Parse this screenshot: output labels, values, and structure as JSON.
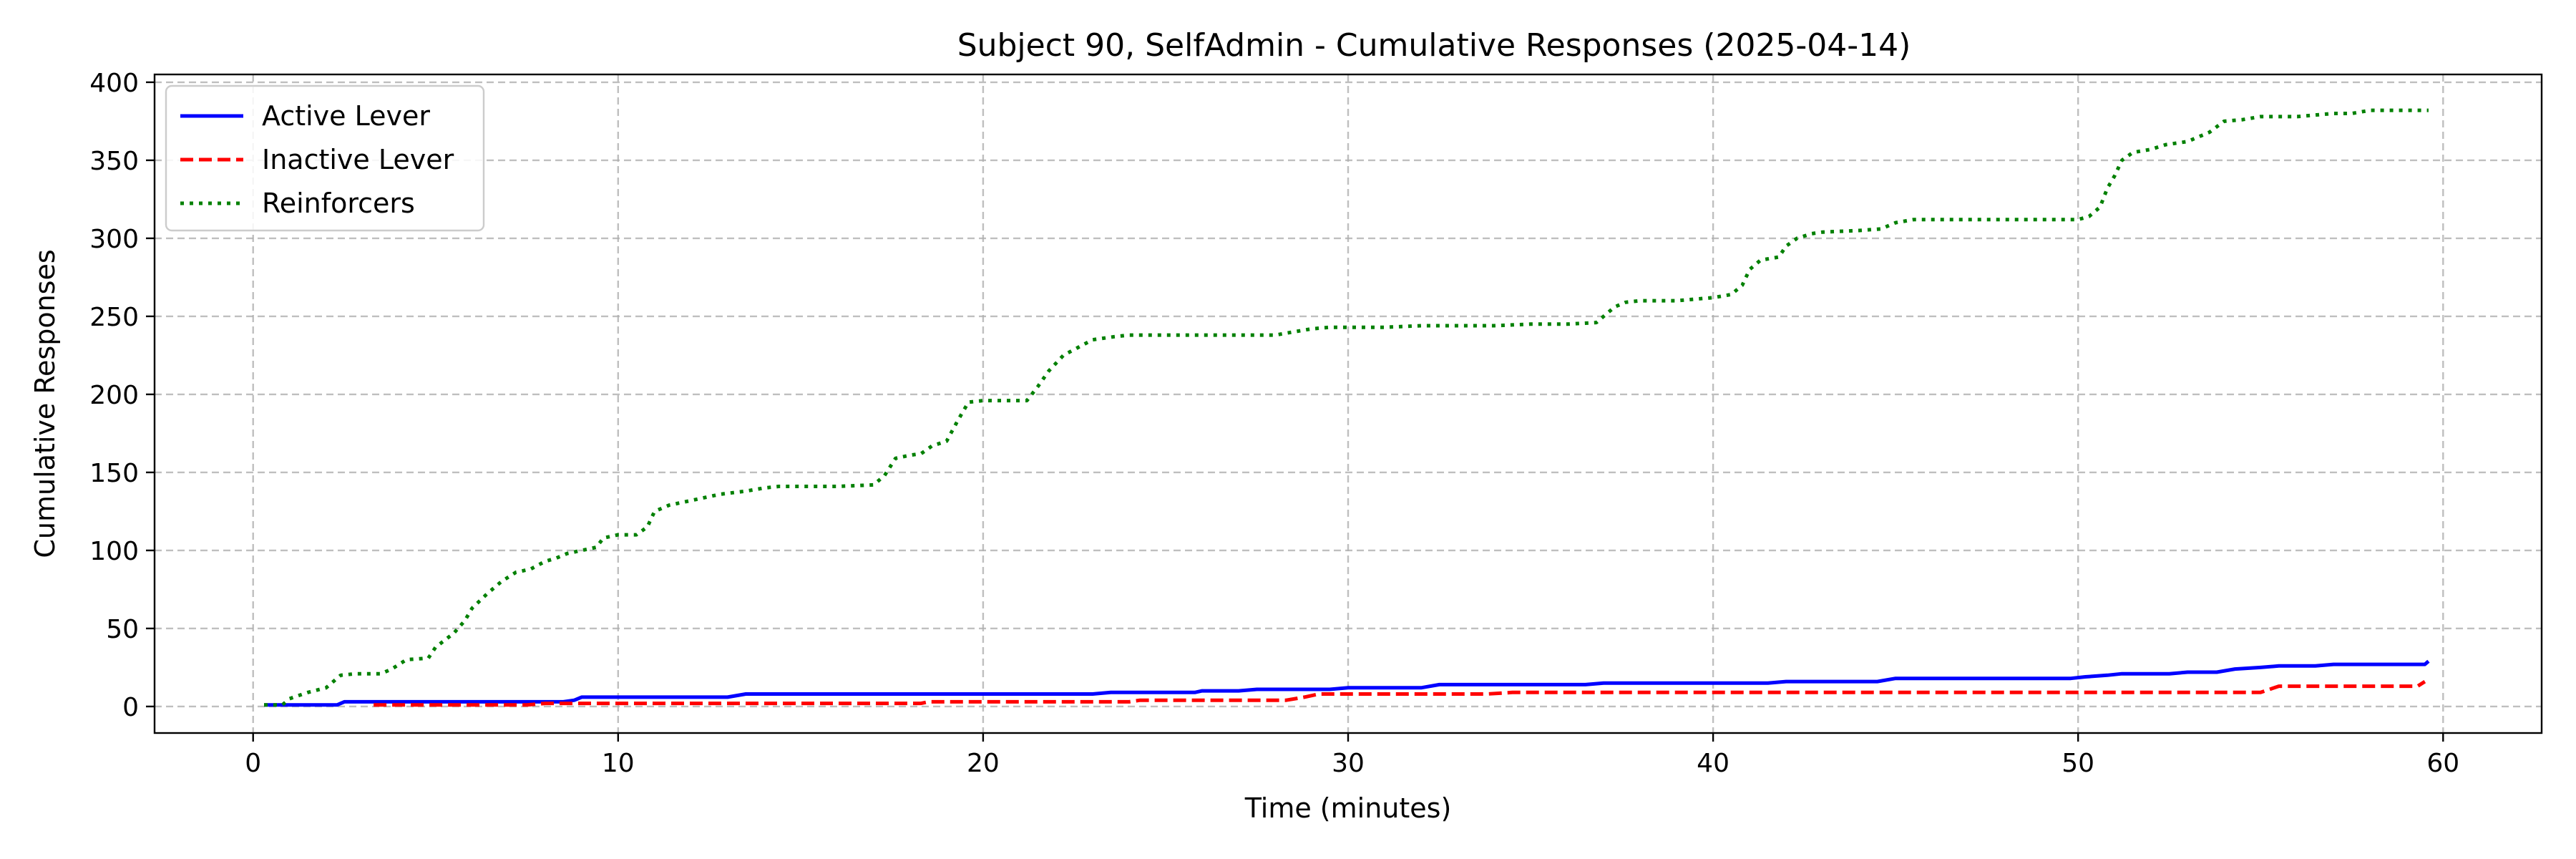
{
  "chart_data": {
    "type": "line",
    "title": "Subject 90, SelfAdmin - Cumulative Responses (2025-04-14)",
    "xlabel": "Time (minutes)",
    "ylabel": "Cumulative Responses",
    "xlim": [
      -2.7,
      62.7
    ],
    "ylim": [
      -17,
      405
    ],
    "xticks": [
      0,
      10,
      20,
      30,
      40,
      50,
      60
    ],
    "yticks": [
      0,
      50,
      100,
      150,
      200,
      250,
      300,
      350,
      400
    ],
    "grid": true,
    "legend": "top-left",
    "series": [
      {
        "name": "Active Lever",
        "color": "#0000ff",
        "style": "solid",
        "x": [
          0.3,
          2.3,
          2.5,
          8.5,
          8.8,
          9.0,
          13.0,
          13.5,
          23.0,
          23.5,
          25.8,
          26.0,
          27.0,
          27.5,
          29.5,
          30.0,
          32.0,
          32.5,
          36.5,
          37.0,
          41.5,
          42.0,
          44.5,
          45.0,
          49.8,
          50.2,
          50.8,
          51.2,
          52.5,
          53.0,
          53.8,
          54.3,
          55.0,
          55.5,
          56.5,
          57.0,
          59.5,
          59.6
        ],
        "y": [
          1,
          1,
          3,
          3,
          4,
          6,
          6,
          8,
          8,
          9,
          9,
          10,
          10,
          11,
          11,
          12,
          12,
          14,
          14,
          15,
          15,
          16,
          16,
          18,
          18,
          19,
          20,
          21,
          21,
          22,
          22,
          24,
          25,
          26,
          26,
          27,
          27,
          29
        ]
      },
      {
        "name": "Inactive Lever",
        "color": "#ff0000",
        "style": "dashed",
        "x": [
          3.3,
          7.5,
          8.0,
          18.3,
          18.5,
          24.0,
          24.3,
          28.3,
          28.8,
          29.2,
          33.8,
          34.5,
          55.0,
          55.5,
          59.3,
          59.5
        ],
        "y": [
          1,
          1,
          2,
          2,
          3,
          3,
          4,
          4,
          6,
          8,
          8,
          9,
          9,
          13,
          13,
          16
        ]
      },
      {
        "name": "Reinforcers",
        "color": "#008000",
        "style": "dotted",
        "x": [
          0.3,
          0.8,
          1.0,
          1.5,
          2.0,
          2.4,
          2.8,
          3.5,
          3.8,
          4.2,
          4.8,
          5.0,
          5.5,
          5.8,
          6.0,
          6.4,
          6.8,
          7.2,
          7.6,
          8.0,
          8.3,
          8.6,
          9.0,
          9.4,
          9.6,
          10.0,
          10.5,
          10.8,
          11.0,
          11.4,
          12.0,
          12.4,
          12.8,
          13.5,
          14.0,
          14.4,
          15.0,
          16.0,
          17.0,
          17.3,
          17.6,
          18.0,
          18.3,
          18.6,
          19.0,
          19.3,
          19.6,
          20.0,
          21.2,
          21.5,
          21.8,
          22.2,
          22.6,
          23.0,
          23.6,
          24.0,
          25.0,
          26.0,
          27.0,
          28.0,
          28.5,
          29.0,
          29.5,
          30.0,
          31.0,
          32.0,
          33.0,
          34.0,
          35.0,
          36.0,
          36.8,
          37.0,
          37.3,
          37.6,
          38.0,
          39.0,
          39.5,
          40.0,
          40.5,
          40.8,
          41.0,
          41.3,
          41.8,
          42.0,
          42.3,
          42.7,
          43.0,
          44.0,
          44.6,
          45.0,
          45.5,
          46.0,
          47.0,
          48.0,
          49.0,
          50.0,
          50.3,
          50.6,
          50.8,
          51.0,
          51.2,
          51.5,
          52.0,
          52.4,
          53.0,
          53.6,
          54.0,
          54.5,
          55.0,
          55.5,
          56.0,
          56.5,
          57.0,
          57.5,
          58.0,
          59.0,
          59.6
        ],
        "y": [
          1,
          1,
          5,
          9,
          12,
          20,
          21,
          21,
          24,
          30,
          31,
          38,
          47,
          55,
          63,
          72,
          80,
          86,
          88,
          93,
          95,
          98,
          100,
          102,
          108,
          110,
          110,
          115,
          125,
          129,
          132,
          134,
          136,
          138,
          140,
          141,
          141,
          141,
          142,
          148,
          159,
          161,
          162,
          167,
          170,
          183,
          195,
          196,
          196,
          205,
          215,
          225,
          230,
          235,
          237,
          238,
          238,
          238,
          238,
          238,
          240,
          242,
          243,
          243,
          243,
          244,
          244,
          244,
          245,
          245,
          246,
          250,
          256,
          259,
          260,
          260,
          261,
          262,
          264,
          270,
          280,
          286,
          288,
          295,
          300,
          303,
          304,
          305,
          306,
          310,
          312,
          312,
          312,
          312,
          312,
          312,
          314,
          320,
          332,
          340,
          350,
          355,
          357,
          360,
          362,
          368,
          375,
          376,
          378,
          378,
          378,
          379,
          380,
          380,
          382,
          382,
          382
        ]
      }
    ]
  }
}
